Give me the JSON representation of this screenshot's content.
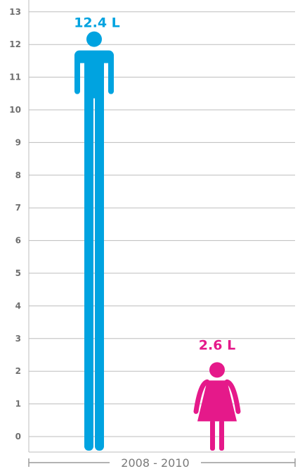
{
  "chart_data": {
    "type": "bar",
    "title": "",
    "xlabel": "",
    "ylabel": "",
    "categories": [
      "male",
      "female"
    ],
    "values": [
      12.4,
      2.6
    ],
    "value_labels": [
      "12.4 L",
      "2.6 L"
    ],
    "period_label": "2008 - 2010",
    "ylim": [
      0,
      13
    ],
    "yticks": [
      "0",
      "1",
      "2",
      "3",
      "4",
      "5",
      "6",
      "7",
      "8",
      "9",
      "10",
      "11",
      "12",
      "13"
    ],
    "grid": true,
    "legend": "none",
    "colors": {
      "male": "#00a3e0",
      "female": "#e5198a",
      "grid": "#bdbdbd",
      "text": "#6f6f6f"
    },
    "icons": [
      "man-figure-icon",
      "woman-figure-icon"
    ]
  }
}
